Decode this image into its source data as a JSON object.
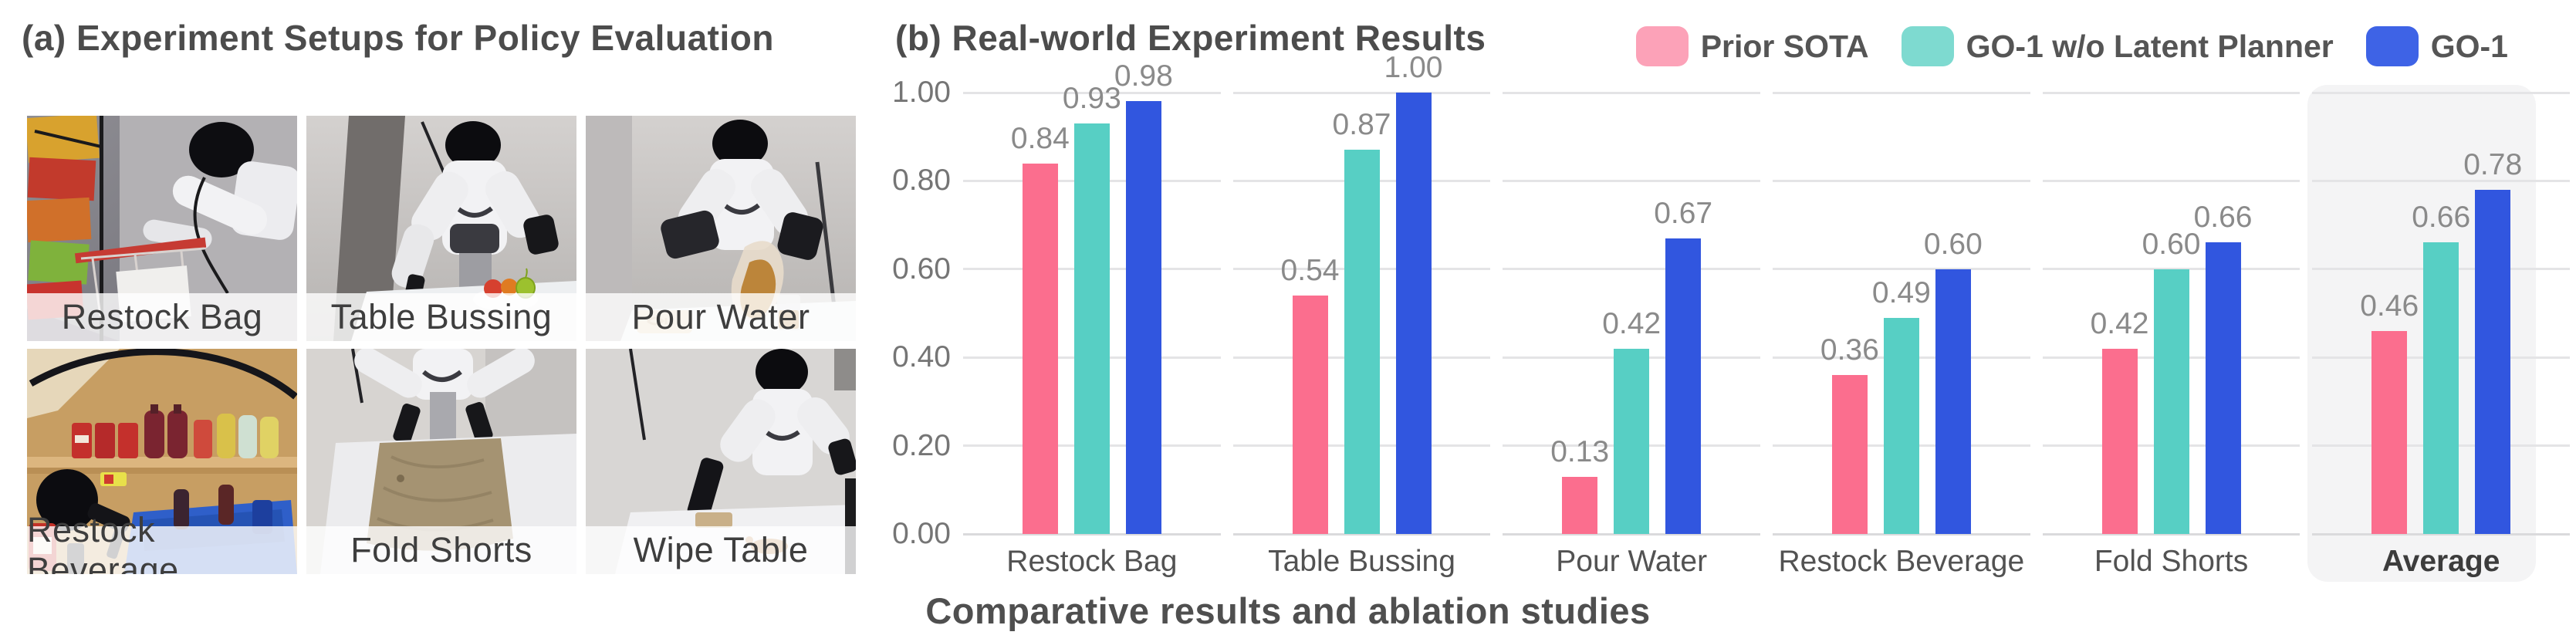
{
  "panel_a": {
    "title": "(a) Experiment Setups for Policy Evaluation",
    "photos": [
      {
        "label": "Restock Bag"
      },
      {
        "label": "Table Bussing"
      },
      {
        "label": "Pour Water"
      },
      {
        "label": "Restock Beverage"
      },
      {
        "label": "Fold Shorts"
      },
      {
        "label": "Wipe Table"
      }
    ]
  },
  "panel_b": {
    "title": "(b) Real-world Experiment Results",
    "caption": "Comparative results and ablation studies"
  },
  "chart_data": {
    "type": "bar",
    "title": "(b) Real-world Experiment Results",
    "categories": [
      "Restock Bag",
      "Table Bussing",
      "Pour Water",
      "Restock Beverage",
      "Fold Shorts",
      "Average"
    ],
    "series": [
      {
        "name": "Prior SOTA",
        "color": "#FB6E8E",
        "legend_color": "#FCA2B8",
        "values": [
          0.84,
          0.54,
          0.13,
          0.36,
          0.42,
          0.46
        ]
      },
      {
        "name": "GO-1 w/o Latent Planner",
        "color": "#57CFC4",
        "legend_color": "#7EDAD0",
        "values": [
          0.93,
          0.87,
          0.42,
          0.49,
          0.6,
          0.66
        ]
      },
      {
        "name": "GO-1",
        "color": "#3156DF",
        "legend_color": "#3E63E6",
        "values": [
          0.98,
          1.0,
          0.67,
          0.6,
          0.66,
          0.78
        ]
      }
    ],
    "xlabel": "",
    "ylabel": "",
    "ylim": [
      0,
      1.0
    ],
    "yticks": [
      0.0,
      0.2,
      0.4,
      0.6,
      0.8,
      1.0
    ],
    "ytick_decimals": 2,
    "grid": "horizontal-per-group",
    "highlight_category": "Average",
    "highlight_color": "#f4f4f5",
    "value_labels": true,
    "legend_position": "top-right",
    "caption": "Comparative results and ablation studies"
  }
}
